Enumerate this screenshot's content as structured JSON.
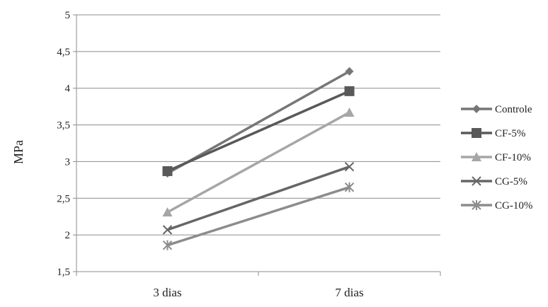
{
  "chart_data": {
    "type": "line",
    "title": "",
    "xlabel": "",
    "ylabel": "MPa",
    "ylim": [
      1.5,
      5
    ],
    "yticks": [
      "1,5",
      "2",
      "2,5",
      "3",
      "3,5",
      "4",
      "4,5",
      "5"
    ],
    "ytick_values": [
      1.5,
      2,
      2.5,
      3,
      3.5,
      4,
      4.5,
      5
    ],
    "categories": [
      "3 dias",
      "7 dias"
    ],
    "grid": "horizontal",
    "legend_position": "right",
    "series": [
      {
        "name": "Controle",
        "values": [
          2.84,
          4.23
        ],
        "color": "#767676",
        "marker": "diamond"
      },
      {
        "name": "CF-5%",
        "values": [
          2.87,
          3.96
        ],
        "color": "#595959",
        "marker": "square"
      },
      {
        "name": "CF-10%",
        "values": [
          2.31,
          3.67
        ],
        "color": "#a6a6a6",
        "marker": "triangle"
      },
      {
        "name": "CG-5%",
        "values": [
          2.07,
          2.93
        ],
        "color": "#666666",
        "marker": "x"
      },
      {
        "name": "CG-10%",
        "values": [
          1.86,
          2.65
        ],
        "color": "#8c8c8c",
        "marker": "star"
      }
    ]
  }
}
